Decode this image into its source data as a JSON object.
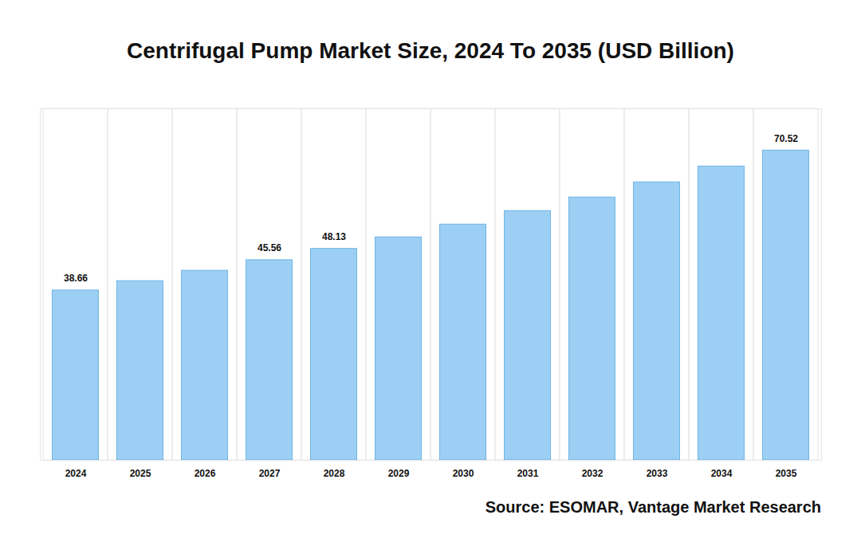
{
  "chart_data": {
    "type": "bar",
    "title": "Centrifugal Pump Market Size, 2024 To 2035 (USD Billion)",
    "caption": "Source: ESOMAR, Vantage Market Research",
    "categories": [
      "2024",
      "2025",
      "2026",
      "2027",
      "2028",
      "2029",
      "2030",
      "2031",
      "2032",
      "2033",
      "2034",
      "2035"
    ],
    "values": [
      38.66,
      40.8,
      43.16,
      45.56,
      48.13,
      50.77,
      53.67,
      56.75,
      59.84,
      63.28,
      66.9,
      70.52
    ],
    "value_labels": [
      "38.66",
      null,
      null,
      "45.56",
      "48.13",
      null,
      null,
      null,
      null,
      null,
      null,
      "70.52"
    ],
    "data_labels": true,
    "color": "#9ccff3",
    "ylim": [
      0,
      80
    ],
    "yticks": [],
    "tick_labels": "x",
    "grid": true
  }
}
